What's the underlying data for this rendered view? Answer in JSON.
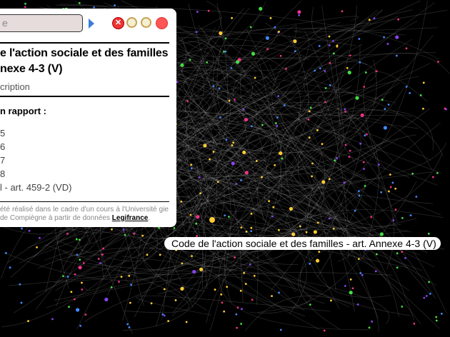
{
  "search": {
    "value": "e"
  },
  "toolbar": {
    "icons": [
      "close-icon",
      "zoom-in-icon",
      "zoom-out-icon",
      "record-icon"
    ]
  },
  "article": {
    "title_line1": "e l'action sociale et des familles",
    "title_line2": "nexe 4-3 (V)",
    "subtitle": "cription"
  },
  "relations": {
    "heading": "n rapport :",
    "items": [
      "5",
      "6",
      "7",
      "8",
      "l - art. 459-2 (VD)"
    ]
  },
  "footer": {
    "text": "été réalisé dans le cadre d'un cours à l'Université gie de Compiègne à partir de données ",
    "link": "Legifrance",
    "end": "."
  },
  "tooltip": {
    "text": "Code de l'action sociale et des familles - art. Annexe 4-3 (V)"
  },
  "colors": {
    "accent_nodes": [
      "#44dd44",
      "#ffcc33",
      "#ee3388",
      "#8844ee",
      "#4488ff"
    ]
  }
}
